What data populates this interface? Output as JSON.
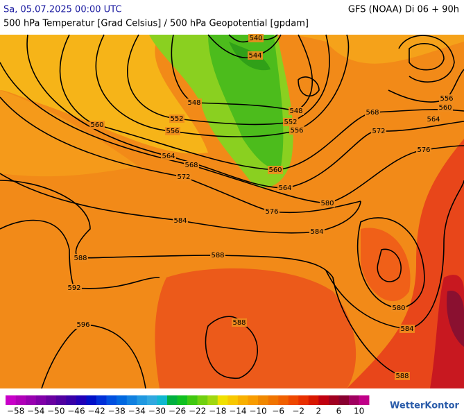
{
  "header": {
    "date": "Sa, 05.07.2025 00:00 UTC",
    "model": "GFS (NOAA) Di 06 + 90h",
    "subtitle": "500 hPa Temperatur [Grad Celsius] / 500 hPa Geopotential [gpdam]"
  },
  "map": {
    "contour_labels": [
      "540",
      "544",
      "548",
      "548",
      "552",
      "552",
      "556",
      "556",
      "560",
      "560",
      "564",
      "564",
      "568",
      "568",
      "572",
      "572",
      "576",
      "576",
      "580",
      "584",
      "584",
      "588",
      "588",
      "592",
      "596",
      "588",
      "580",
      "584",
      "588",
      "556",
      "560",
      "564"
    ]
  },
  "colorbar": {
    "labels": [
      "−58",
      "−54",
      "−50",
      "−46",
      "−42",
      "−38",
      "−34",
      "−30",
      "−26",
      "−22",
      "−18",
      "−14",
      "−10",
      "−6",
      "−2",
      "2",
      "6",
      "10"
    ]
  },
  "logo": "WetterKontor"
}
